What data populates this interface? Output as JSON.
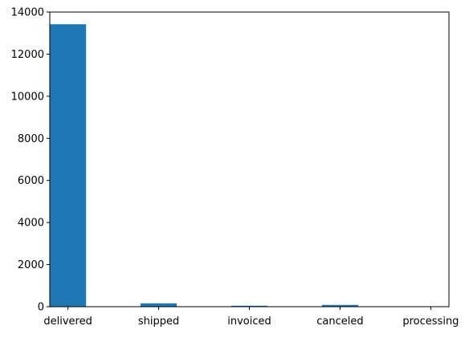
{
  "chart_data": {
    "type": "bar",
    "categories": [
      "delivered",
      "shipped",
      "invoiced",
      "canceled",
      "processing"
    ],
    "values": [
      13420,
      160,
      45,
      85,
      12
    ],
    "title": "",
    "xlabel": "",
    "ylabel": "",
    "ylim": [
      0,
      14000
    ],
    "yticks": [
      0,
      2000,
      4000,
      6000,
      8000,
      10000,
      12000,
      14000
    ],
    "ytick_labels": [
      "0",
      "2000",
      "4000",
      "6000",
      "8000",
      "10000",
      "12000",
      "14000"
    ],
    "grid": false,
    "bar_color": "#1f77b4"
  }
}
